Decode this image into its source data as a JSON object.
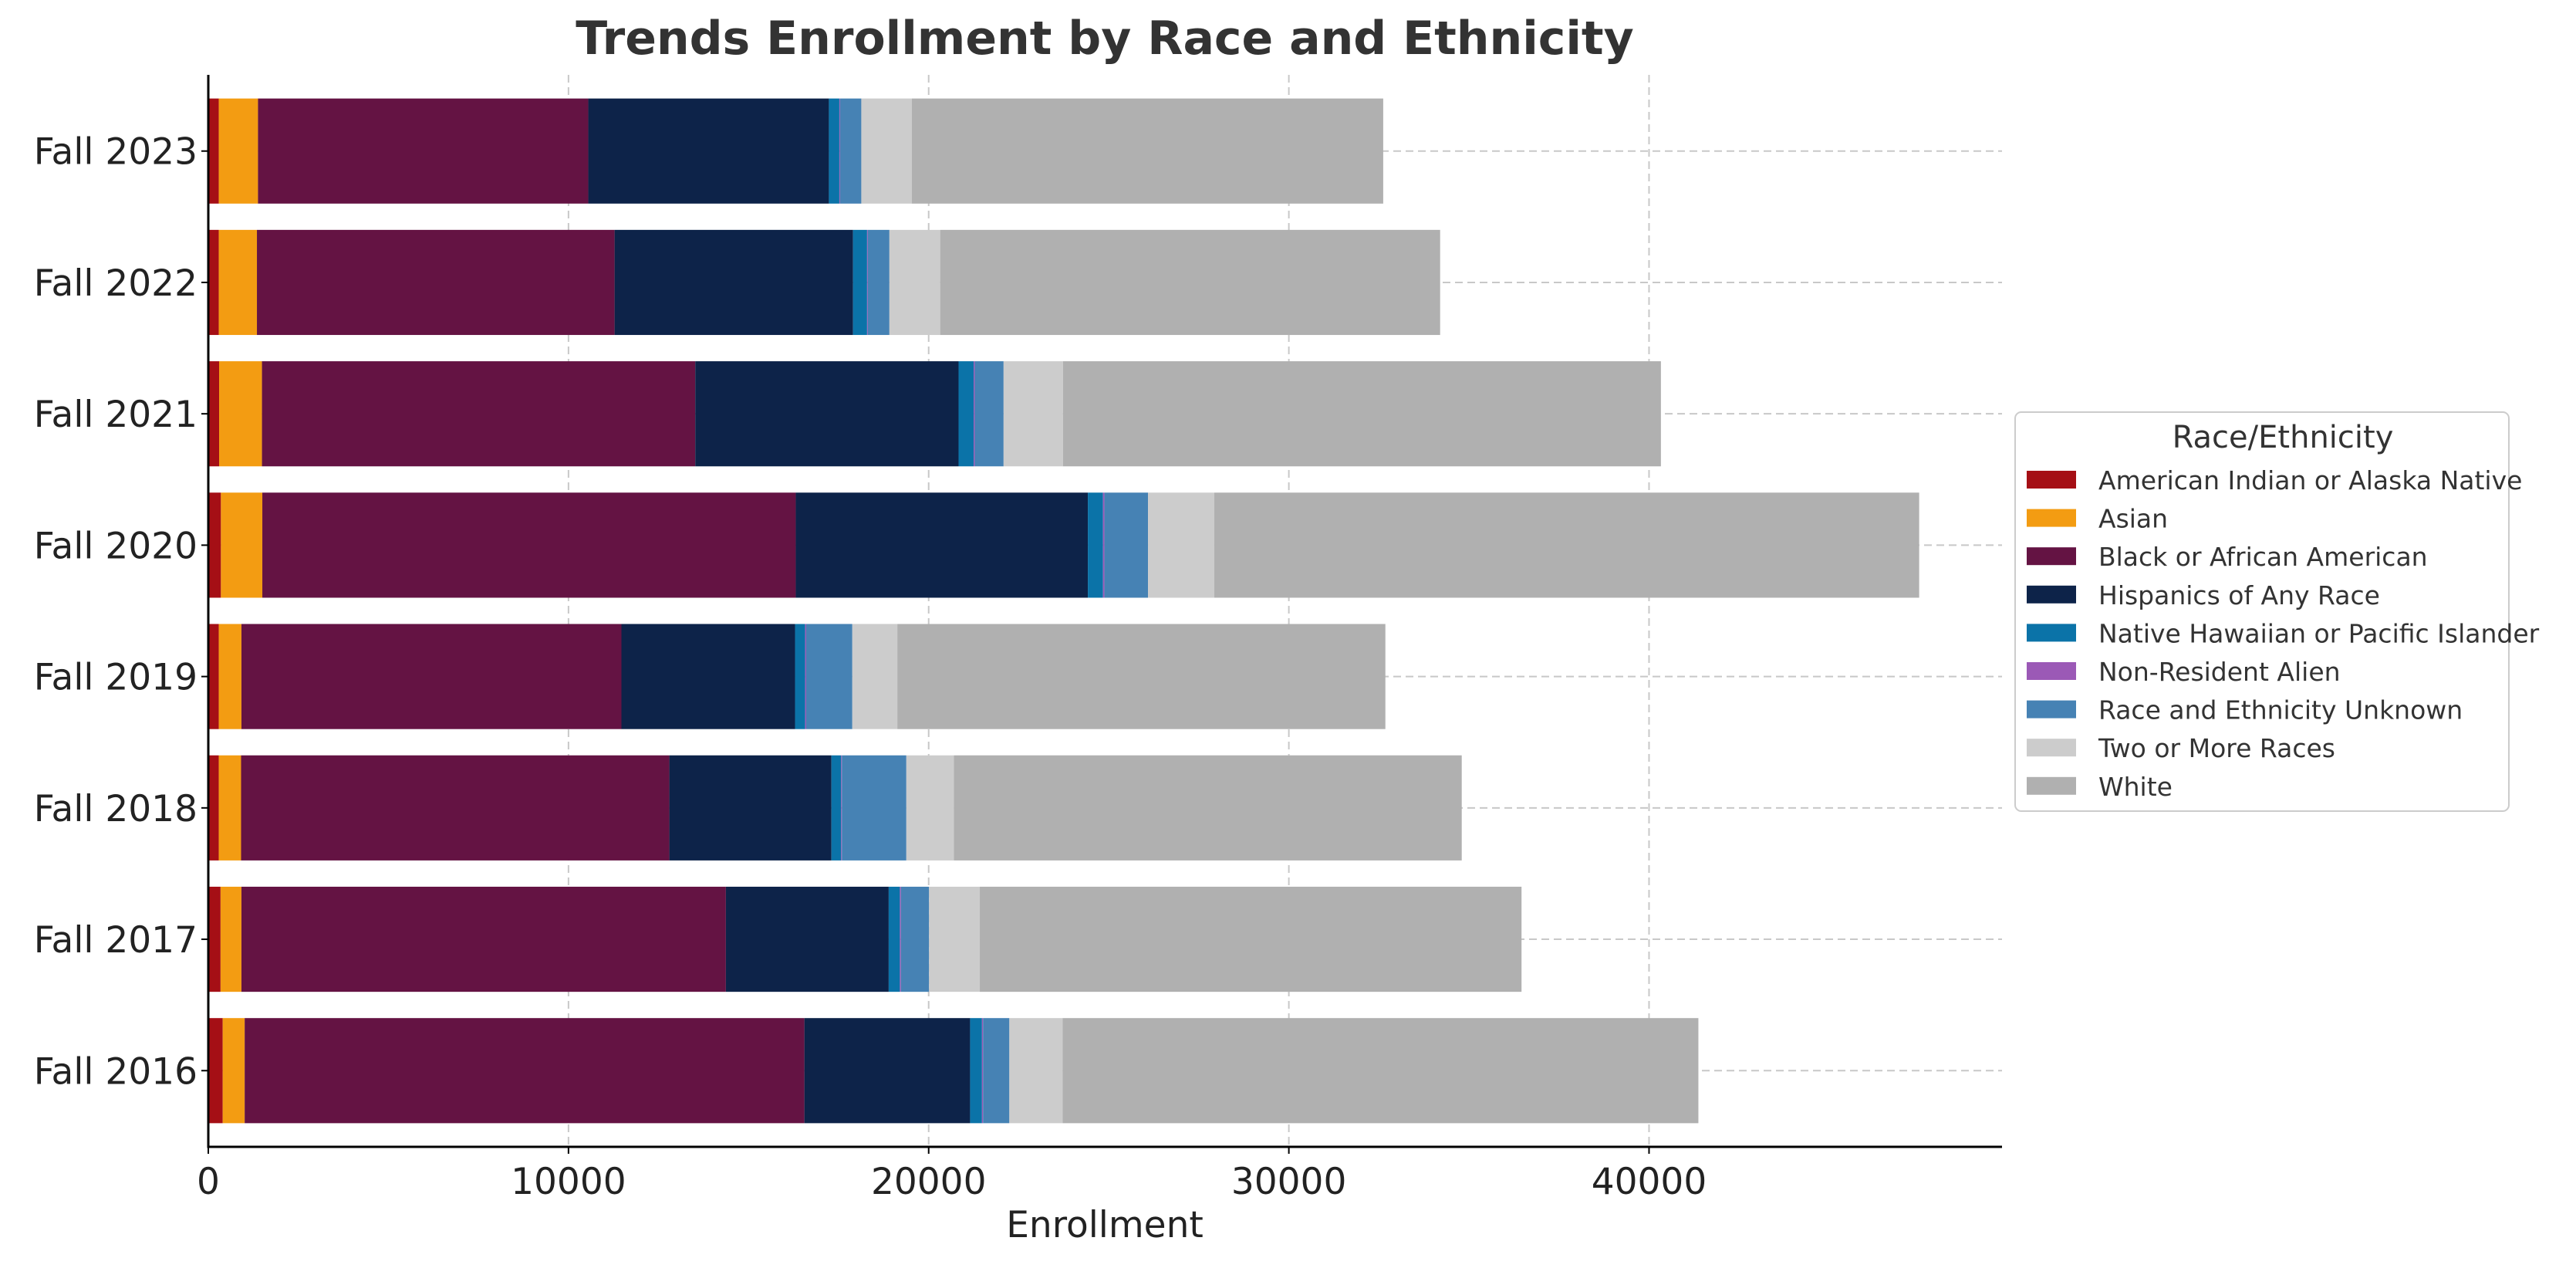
{
  "chart_data": {
    "type": "bar",
    "orientation": "horizontal",
    "stacked": true,
    "title": "Trends Enrollment by Race and Ethnicity",
    "xlabel": "Enrollment",
    "ylabel": "",
    "xlim": [
      0,
      49800
    ],
    "xticks": [
      0,
      10000,
      20000,
      30000,
      40000
    ],
    "grid": true,
    "legend_title": "Race/Ethnicity",
    "legend_position": "center-right",
    "categories": [
      "Fall 2023",
      "Fall 2022",
      "Fall 2021",
      "Fall 2020",
      "Fall 2019",
      "Fall 2018",
      "Fall 2017",
      "Fall 2016"
    ],
    "series": [
      {
        "name": "American Indian or Alaska Native",
        "color": "#A50F15",
        "values": [
          290,
          290,
          300,
          350,
          290,
          290,
          340,
          400
        ]
      },
      {
        "name": "Asian",
        "color": "#F39C12",
        "values": [
          1090,
          1060,
          1190,
          1150,
          630,
          620,
          580,
          610
        ]
      },
      {
        "name": "Black or African American",
        "color": "#641343",
        "values": [
          9170,
          9930,
          12030,
          14810,
          10550,
          11890,
          13450,
          15540
        ]
      },
      {
        "name": "Hispanics of Any Race",
        "color": "#0D2349",
        "values": [
          6680,
          6620,
          7310,
          8110,
          4820,
          4500,
          4520,
          4600
        ]
      },
      {
        "name": "Native Hawaiian or Pacific Islander",
        "color": "#0B73A8",
        "values": [
          290,
          390,
          420,
          420,
          280,
          270,
          310,
          330
        ]
      },
      {
        "name": "Non-Resident Alien",
        "color": "#9B59B6",
        "values": [
          20,
          20,
          30,
          40,
          30,
          20,
          30,
          30
        ]
      },
      {
        "name": "Race and Ethnicity Unknown",
        "color": "#4682B4",
        "values": [
          590,
          600,
          800,
          1210,
          1280,
          1790,
          780,
          730
        ]
      },
      {
        "name": "Two or More Races",
        "color": "#CCCCCC",
        "values": [
          1400,
          1410,
          1650,
          1840,
          1250,
          1320,
          1410,
          1480
        ]
      },
      {
        "name": "White",
        "color": "#B0B0B0",
        "values": [
          13090,
          13880,
          16600,
          19570,
          13550,
          14100,
          15040,
          17650
        ]
      }
    ]
  }
}
